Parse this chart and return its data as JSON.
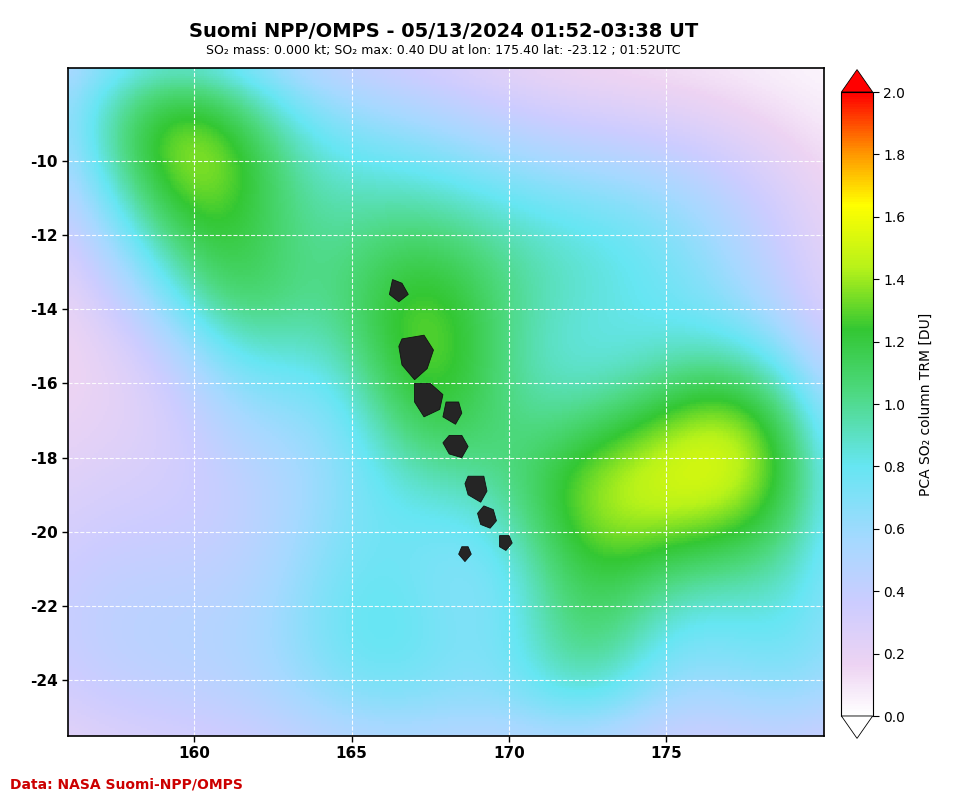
{
  "title": "Suomi NPP/OMPS - 05/13/2024 01:52-03:38 UT",
  "subtitle": "SO₂ mass: 0.000 kt; SO₂ max: 0.40 DU at lon: 175.40 lat: -23.12 ; 01:52UTC",
  "data_credit": "Data: NASA Suomi-NPP/OMPS",
  "colorbar_label": "PCA SO₂ column TRM [DU]",
  "lon_min": 156,
  "lon_max": 180,
  "lat_min": -25.5,
  "lat_max": -7.5,
  "lon_ticks": [
    160,
    165,
    170,
    175
  ],
  "lat_ticks": [
    -10,
    -12,
    -14,
    -16,
    -18,
    -20,
    -22,
    -24
  ],
  "cbar_min": 0.0,
  "cbar_max": 2.0,
  "background_color": "#ffffff",
  "map_bg_color": "#c8c8d0",
  "title_color": "#000000",
  "subtitle_color": "#000000",
  "credit_color": "#cc0000",
  "grid_color": "#ffffff",
  "colorbar_ticks": [
    0.0,
    0.2,
    0.4,
    0.6,
    0.8,
    1.0,
    1.2,
    1.4,
    1.6,
    1.8,
    2.0
  ]
}
